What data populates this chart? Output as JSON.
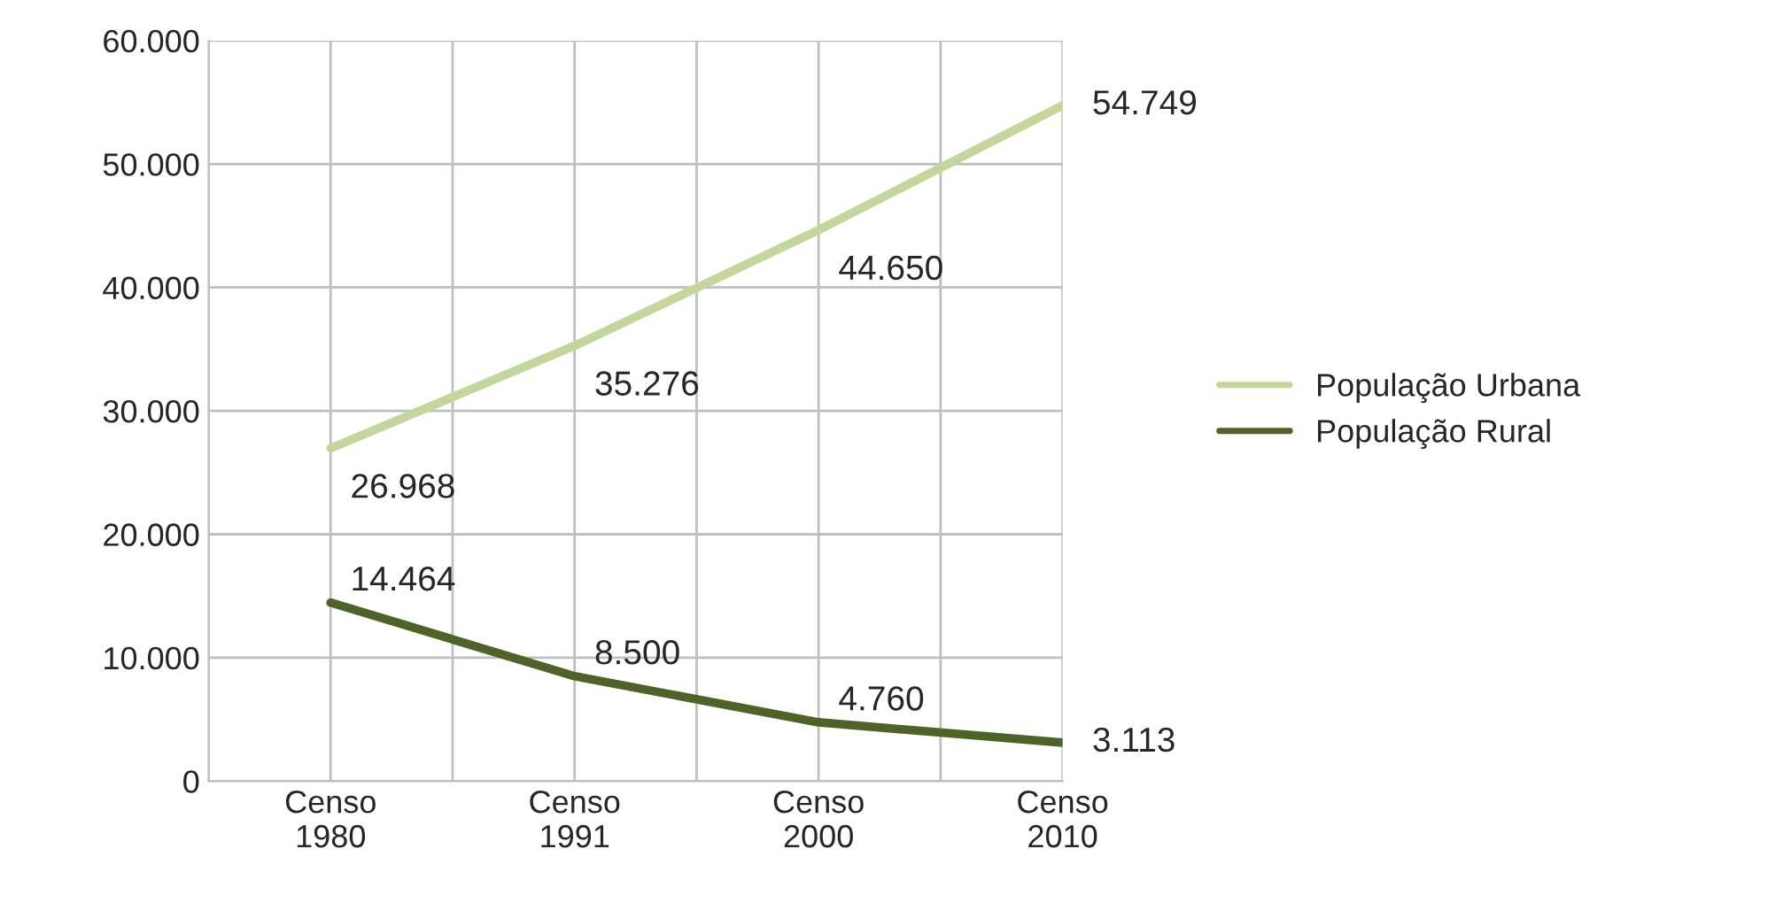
{
  "chart_data": {
    "type": "line",
    "categories": [
      "Censo\n1980",
      "Censo\n1991",
      "Censo\n2000",
      "Censo\n2010"
    ],
    "series": [
      {
        "name": "População Urbana",
        "color": "#c3d69b",
        "values": [
          26968,
          35276,
          44650,
          54749
        ],
        "value_labels": [
          "26.968",
          "35.276",
          "44.650",
          "54.749"
        ]
      },
      {
        "name": "População Rural",
        "color": "#4f6228",
        "values": [
          14464,
          8500,
          4760,
          3113
        ],
        "value_labels": [
          "14.464",
          "8.500",
          "4.760",
          "3.113"
        ]
      }
    ],
    "ylim": [
      0,
      60000
    ],
    "yticks": [
      {
        "value": 0,
        "label": "0"
      },
      {
        "value": 10000,
        "label": "10.000"
      },
      {
        "value": 20000,
        "label": "20.000"
      },
      {
        "value": 30000,
        "label": "30.000"
      },
      {
        "value": 40000,
        "label": "40.000"
      },
      {
        "value": 50000,
        "label": "50.000"
      },
      {
        "value": 60000,
        "label": "60.000"
      }
    ],
    "grid": true,
    "legend": "right",
    "marker": "none",
    "line_style": "solid"
  }
}
